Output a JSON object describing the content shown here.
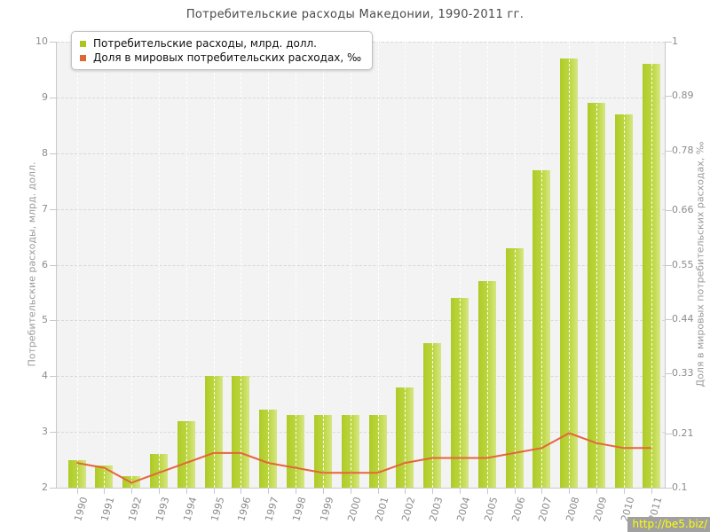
{
  "title": "Потребительские расходы Македонии, 1990-2011 гг.",
  "legend": {
    "items": [
      {
        "label": "Потребительские расходы, млрд. долл.",
        "color": "#a8c61e"
      },
      {
        "label": "Доля в мировых потребительских расходах, ‰",
        "color": "#dd6633"
      }
    ]
  },
  "watermark": "http://be5.biz/",
  "colors": {
    "bar_main": "#b9d334",
    "bar_light": "#d6e683",
    "line": "#e4663a",
    "plot_background": "#f3f3f3",
    "grid": "#d8d8d8",
    "axis": "#c8c8c8",
    "tick_text": "#8c8c8c",
    "title_text": "#4a4a4a",
    "watermark_bg": "#a0a0a0",
    "watermark_text": "#ffff00"
  },
  "chart_data": {
    "type": "bar",
    "title": "Потребительские расходы Македонии, 1990-2011 гг.",
    "categories": [
      "1990",
      "1991",
      "1992",
      "1993",
      "1994",
      "1995",
      "1996",
      "1997",
      "1998",
      "1999",
      "2000",
      "2001",
      "2002",
      "2003",
      "2004",
      "2005",
      "2006",
      "2007",
      "2008",
      "2009",
      "2010",
      "2011"
    ],
    "series": [
      {
        "name": "Потребительские расходы, млрд. долл.",
        "type": "bar",
        "axis": "left",
        "color": "#b9d334",
        "values": [
          2.5,
          2.4,
          2.2,
          2.6,
          3.2,
          4.0,
          4.0,
          3.4,
          3.3,
          3.3,
          3.3,
          3.3,
          3.8,
          4.6,
          5.4,
          5.7,
          6.3,
          7.7,
          9.7,
          8.9,
          8.7,
          9.6
        ]
      },
      {
        "name": "Доля в мировых потребительских расходах, ‰",
        "type": "line",
        "axis": "right",
        "color": "#e4663a",
        "values": [
          0.15,
          0.14,
          0.11,
          0.13,
          0.15,
          0.17,
          0.17,
          0.15,
          0.14,
          0.13,
          0.13,
          0.13,
          0.15,
          0.16,
          0.16,
          0.16,
          0.17,
          0.18,
          0.21,
          0.19,
          0.18,
          0.18
        ]
      }
    ],
    "left_axis": {
      "label": "Потребительские расходы, млрд. долл.",
      "min": 2,
      "max": 10,
      "ticks": [
        10,
        9,
        8,
        7,
        6,
        5,
        4,
        3,
        2
      ]
    },
    "right_axis": {
      "label": "Доля в мировых потребительских расходах, ‰",
      "min": 0.1,
      "max": 1,
      "ticks": [
        1,
        0.89,
        0.78,
        0.66,
        0.55,
        0.44,
        0.33,
        0.21,
        0.1
      ]
    },
    "grid": true,
    "legend_position": "top-left"
  }
}
